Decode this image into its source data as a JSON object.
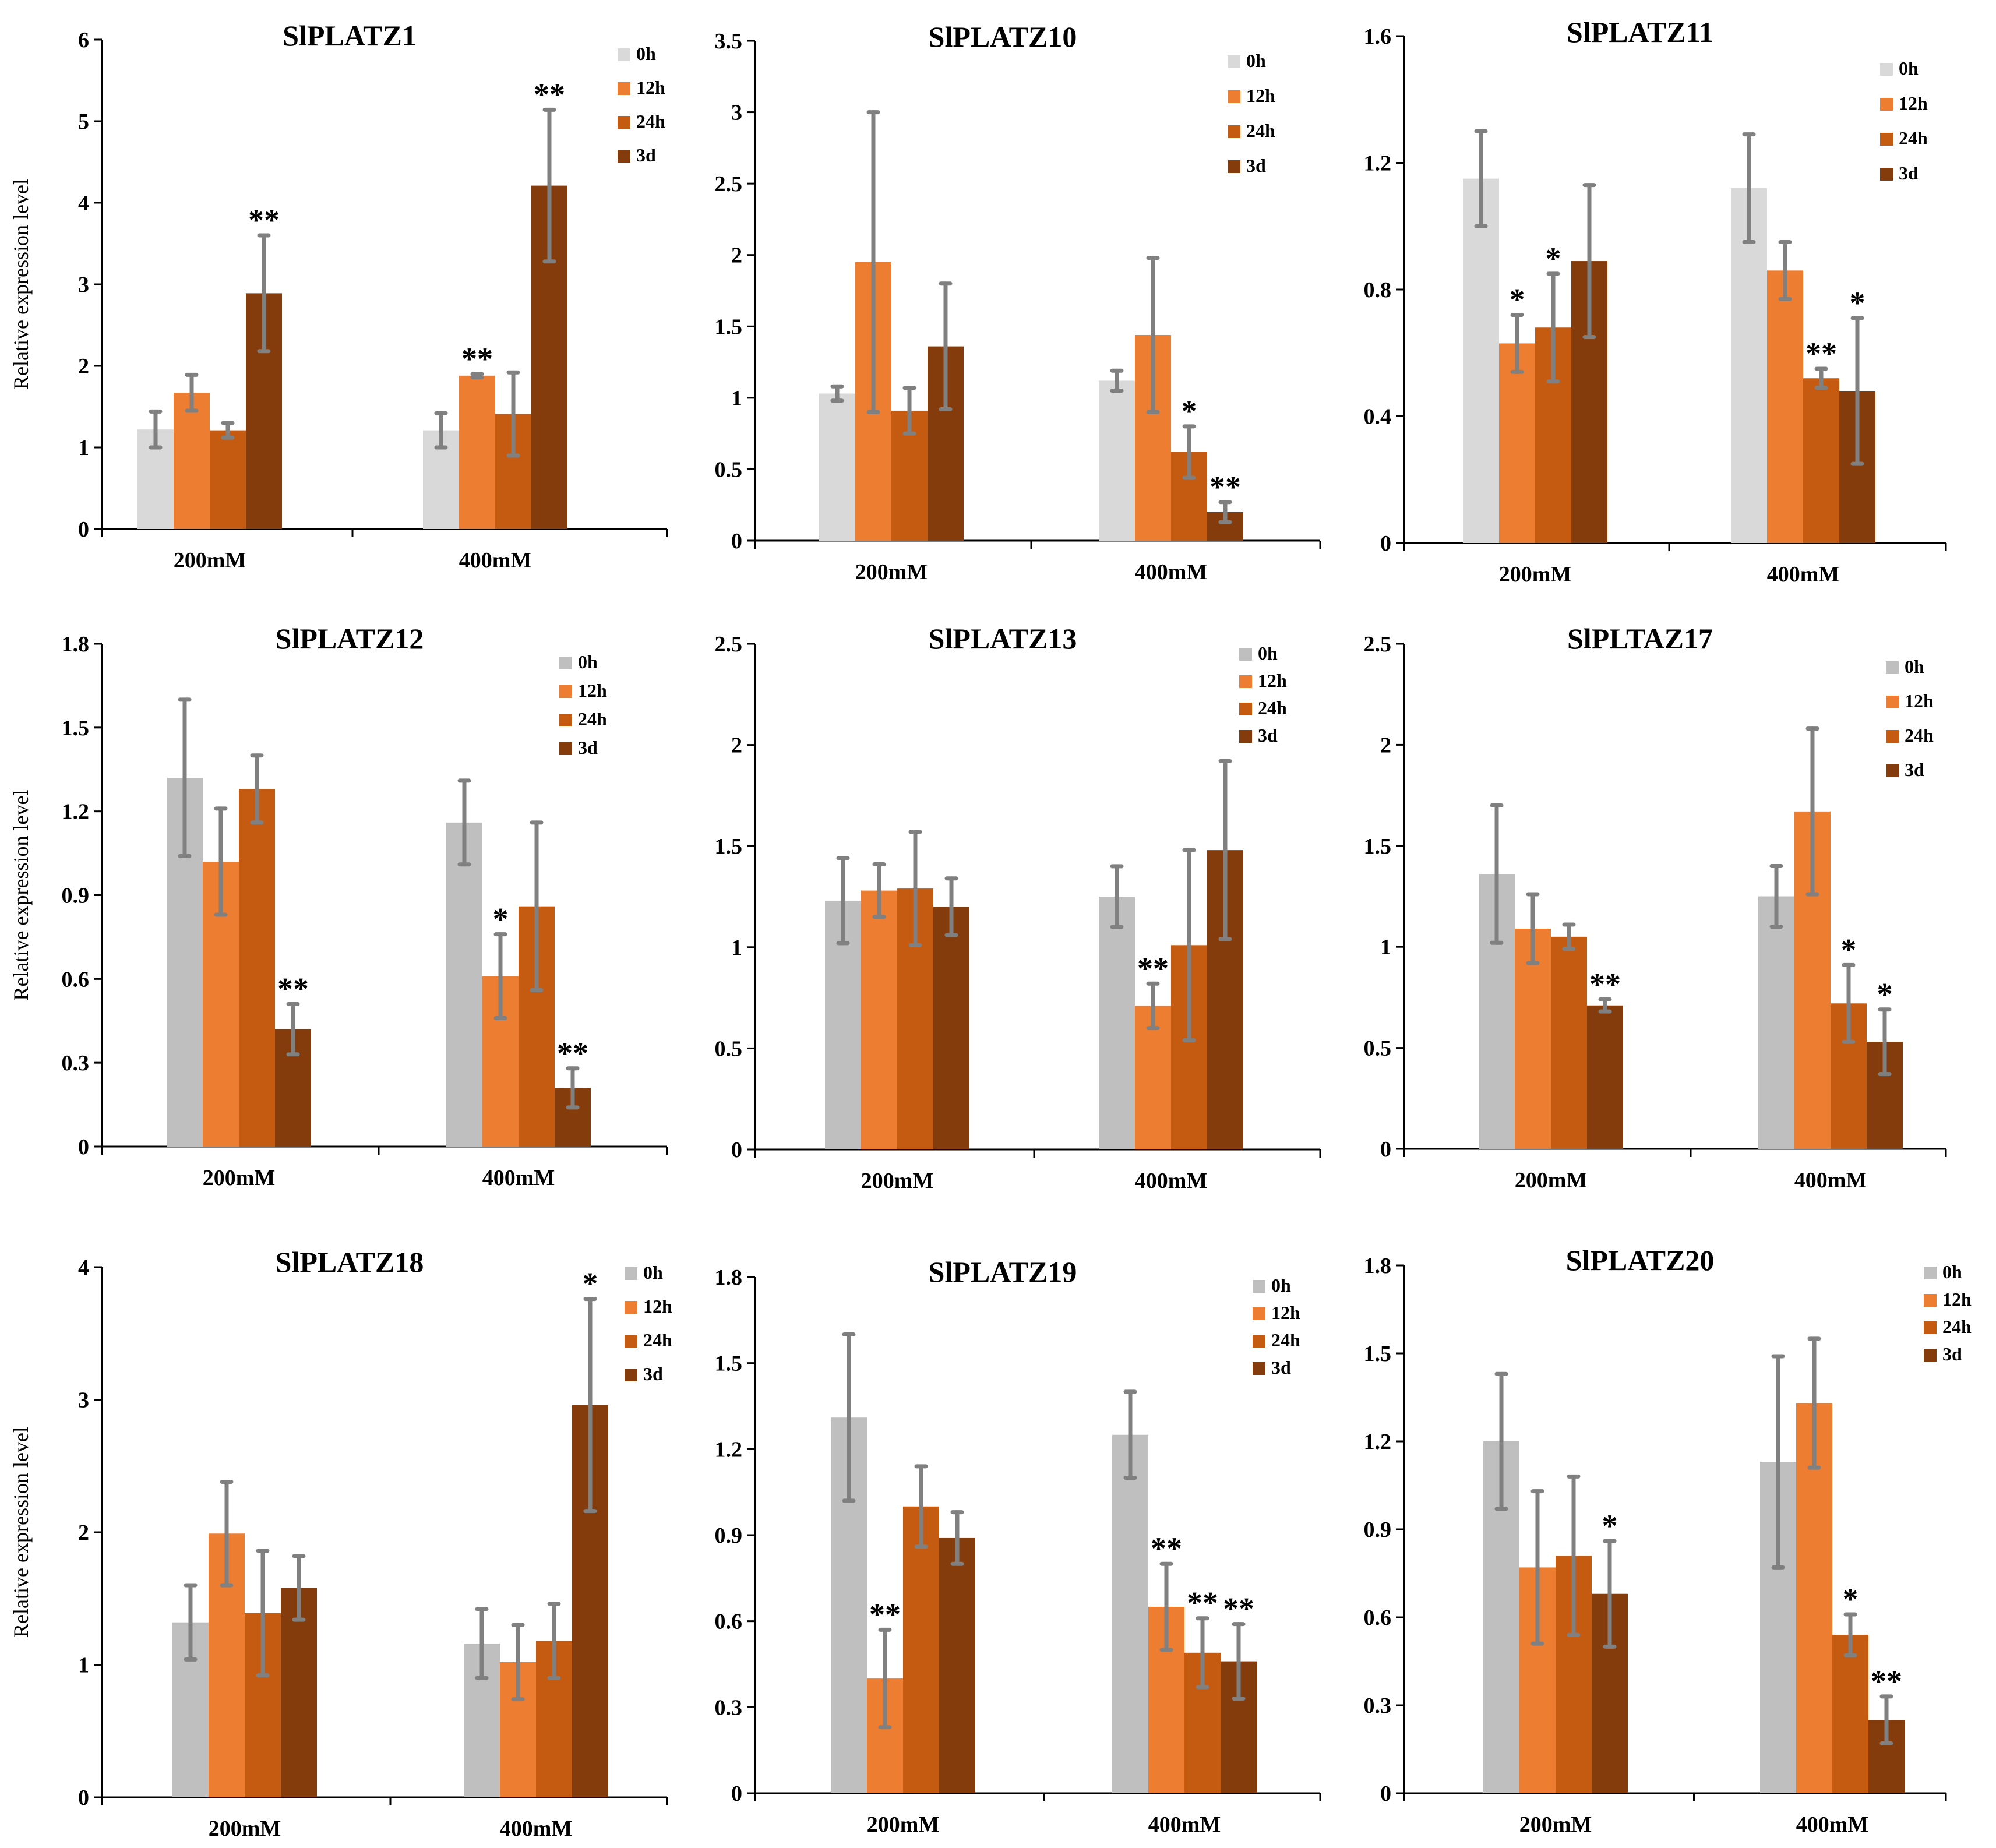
{
  "chart_data": [
    {
      "type": "bar",
      "title": "SlPLATZ1",
      "ylabel": "Relative expression level",
      "categories": [
        "200mM",
        "400mM"
      ],
      "ylim": [
        0,
        6
      ],
      "yticks": [
        0,
        1,
        2,
        3,
        4,
        5,
        6
      ],
      "yticklabels": [
        "0",
        "1",
        "2",
        "3",
        "4",
        "5",
        "6"
      ],
      "series": [
        {
          "name": "0h",
          "values": [
            1.22,
            1.21
          ],
          "errors": [
            0.22,
            0.21
          ],
          "sig": [
            "",
            ""
          ]
        },
        {
          "name": "12h",
          "values": [
            1.67,
            1.88
          ],
          "errors": [
            0.22,
            0.02
          ],
          "sig": [
            "",
            "**"
          ]
        },
        {
          "name": "24h",
          "values": [
            1.21,
            1.41
          ],
          "errors": [
            0.09,
            0.51
          ],
          "sig": [
            "",
            ""
          ]
        },
        {
          "name": "3d",
          "values": [
            2.89,
            4.21
          ],
          "errors": [
            0.71,
            0.93
          ],
          "sig": [
            "**",
            "**"
          ]
        }
      ]
    },
    {
      "type": "bar",
      "title": "SlPLATZ10",
      "ylabel": "",
      "categories": [
        "200mM",
        "400mM"
      ],
      "ylim": [
        0,
        3.5
      ],
      "yticks": [
        0,
        0.5,
        1,
        1.5,
        2,
        2.5,
        3,
        3.5
      ],
      "yticklabels": [
        "0",
        "0.5",
        "1",
        "1.5",
        "2",
        "2.5",
        "3",
        "3.5"
      ],
      "series": [
        {
          "name": "0h",
          "values": [
            1.03,
            1.12
          ],
          "errors": [
            0.05,
            0.07
          ],
          "sig": [
            "",
            ""
          ]
        },
        {
          "name": "12h",
          "values": [
            1.95,
            1.44
          ],
          "errors": [
            1.05,
            0.54
          ],
          "sig": [
            "",
            ""
          ]
        },
        {
          "name": "24h",
          "values": [
            0.91,
            0.62
          ],
          "errors": [
            0.16,
            0.18
          ],
          "sig": [
            "",
            "*"
          ]
        },
        {
          "name": "3d",
          "values": [
            1.36,
            0.2
          ],
          "errors": [
            0.44,
            0.07
          ],
          "sig": [
            "",
            "**"
          ]
        }
      ]
    },
    {
      "type": "bar",
      "title": "SlPLATZ11",
      "ylabel": "",
      "categories": [
        "200mM",
        "400mM"
      ],
      "ylim": [
        0,
        1.6
      ],
      "yticks": [
        0,
        0.4,
        0.8,
        1.2,
        1.6
      ],
      "yticklabels": [
        "0",
        "0.4",
        "0.8",
        "1.2",
        "1.6"
      ],
      "series": [
        {
          "name": "0h",
          "values": [
            1.15,
            1.12
          ],
          "errors": [
            0.15,
            0.17
          ],
          "sig": [
            "",
            ""
          ]
        },
        {
          "name": "12h",
          "values": [
            0.63,
            0.86
          ],
          "errors": [
            0.09,
            0.09
          ],
          "sig": [
            "*",
            ""
          ]
        },
        {
          "name": "24h",
          "values": [
            0.68,
            0.52
          ],
          "errors": [
            0.17,
            0.03
          ],
          "sig": [
            "*",
            "**"
          ]
        },
        {
          "name": "3d",
          "values": [
            0.89,
            0.48
          ],
          "errors": [
            0.24,
            0.23
          ],
          "sig": [
            "",
            "*"
          ]
        }
      ]
    },
    {
      "type": "bar",
      "title": "SlPLATZ12",
      "ylabel": "Relative expression level",
      "categories": [
        "200mM",
        "400mM"
      ],
      "ylim": [
        0,
        1.8
      ],
      "yticks": [
        0,
        0.3,
        0.6,
        0.9,
        1.2,
        1.5,
        1.8
      ],
      "yticklabels": [
        "0",
        "0.3",
        "0.6",
        "0.9",
        "1.2",
        "1.5",
        "1.8"
      ],
      "series": [
        {
          "name": "0h",
          "values": [
            1.32,
            1.16
          ],
          "errors": [
            0.28,
            0.15
          ],
          "sig": [
            "",
            ""
          ]
        },
        {
          "name": "12h",
          "values": [
            1.02,
            0.61
          ],
          "errors": [
            0.19,
            0.15
          ],
          "sig": [
            "",
            "*"
          ]
        },
        {
          "name": "24h",
          "values": [
            1.28,
            0.86
          ],
          "errors": [
            0.12,
            0.3
          ],
          "sig": [
            "",
            ""
          ]
        },
        {
          "name": "3d",
          "values": [
            0.42,
            0.21
          ],
          "errors": [
            0.09,
            0.07
          ],
          "sig": [
            "**",
            "**"
          ]
        }
      ]
    },
    {
      "type": "bar",
      "title": "SlPLATZ13",
      "ylabel": "",
      "categories": [
        "200mM",
        "400mM"
      ],
      "ylim": [
        0,
        2.5
      ],
      "yticks": [
        0,
        0.5,
        1,
        1.5,
        2,
        2.5
      ],
      "yticklabels": [
        "0",
        "0.5",
        "1",
        "1.5",
        "2",
        "2.5"
      ],
      "series": [
        {
          "name": "0h",
          "values": [
            1.23,
            1.25
          ],
          "errors": [
            0.21,
            0.15
          ],
          "sig": [
            "",
            ""
          ]
        },
        {
          "name": "12h",
          "values": [
            1.28,
            0.71
          ],
          "errors": [
            0.13,
            0.11
          ],
          "sig": [
            "",
            "**"
          ]
        },
        {
          "name": "24h",
          "values": [
            1.29,
            1.01
          ],
          "errors": [
            0.28,
            0.47
          ],
          "sig": [
            "",
            ""
          ]
        },
        {
          "name": "3d",
          "values": [
            1.2,
            1.48
          ],
          "errors": [
            0.14,
            0.44
          ],
          "sig": [
            "",
            ""
          ]
        }
      ]
    },
    {
      "type": "bar",
      "title": "SlPLTAZ17",
      "ylabel": "",
      "categories": [
        "200mM",
        "400mM"
      ],
      "ylim": [
        0,
        2.5
      ],
      "yticks": [
        0,
        0.5,
        1,
        1.5,
        2,
        2.5
      ],
      "yticklabels": [
        "0",
        "0.5",
        "1",
        "1.5",
        "2",
        "2.5"
      ],
      "series": [
        {
          "name": "0h",
          "values": [
            1.36,
            1.25
          ],
          "errors": [
            0.34,
            0.15
          ],
          "sig": [
            "",
            ""
          ]
        },
        {
          "name": "12h",
          "values": [
            1.09,
            1.67
          ],
          "errors": [
            0.17,
            0.41
          ],
          "sig": [
            "",
            ""
          ]
        },
        {
          "name": "24h",
          "values": [
            1.05,
            0.72
          ],
          "errors": [
            0.06,
            0.19
          ],
          "sig": [
            "",
            "*"
          ]
        },
        {
          "name": "3d",
          "values": [
            0.71,
            0.53
          ],
          "errors": [
            0.03,
            0.16
          ],
          "sig": [
            "**",
            "*"
          ]
        }
      ]
    },
    {
      "type": "bar",
      "title": "SlPLATZ18",
      "ylabel": "Relative expression level",
      "categories": [
        "200mM",
        "400mM"
      ],
      "ylim": [
        0,
        4
      ],
      "yticks": [
        0,
        1,
        2,
        3,
        4
      ],
      "yticklabels": [
        "0",
        "1",
        "2",
        "3",
        "4"
      ],
      "series": [
        {
          "name": "0h",
          "values": [
            1.32,
            1.16
          ],
          "errors": [
            0.28,
            0.26
          ],
          "sig": [
            "",
            ""
          ]
        },
        {
          "name": "12h",
          "values": [
            1.99,
            1.02
          ],
          "errors": [
            0.39,
            0.28
          ],
          "sig": [
            "",
            ""
          ]
        },
        {
          "name": "24h",
          "values": [
            1.39,
            1.18
          ],
          "errors": [
            0.47,
            0.28
          ],
          "sig": [
            "",
            ""
          ]
        },
        {
          "name": "3d",
          "values": [
            1.58,
            2.96
          ],
          "errors": [
            0.24,
            0.8
          ],
          "sig": [
            "",
            "*"
          ]
        }
      ]
    },
    {
      "type": "bar",
      "title": "SlPLATZ19",
      "ylabel": "",
      "categories": [
        "200mM",
        "400mM"
      ],
      "ylim": [
        0,
        1.8
      ],
      "yticks": [
        0,
        0.3,
        0.6,
        0.9,
        1.2,
        1.5,
        1.8
      ],
      "yticklabels": [
        "0",
        "0.3",
        "0.6",
        "0.9",
        "1.2",
        "1.5",
        "1.8"
      ],
      "series": [
        {
          "name": "0h",
          "values": [
            1.31,
            1.25
          ],
          "errors": [
            0.29,
            0.15
          ],
          "sig": [
            "",
            ""
          ]
        },
        {
          "name": "12h",
          "values": [
            0.4,
            0.65
          ],
          "errors": [
            0.17,
            0.15
          ],
          "sig": [
            "**",
            "**"
          ]
        },
        {
          "name": "24h",
          "values": [
            1.0,
            0.49
          ],
          "errors": [
            0.14,
            0.12
          ],
          "sig": [
            "",
            "**"
          ]
        },
        {
          "name": "3d",
          "values": [
            0.89,
            0.46
          ],
          "errors": [
            0.09,
            0.13
          ],
          "sig": [
            "",
            "**"
          ]
        }
      ]
    },
    {
      "type": "bar",
      "title": "SlPLATZ20",
      "ylabel": "",
      "categories": [
        "200mM",
        "400mM"
      ],
      "ylim": [
        0,
        1.8
      ],
      "yticks": [
        0,
        0.3,
        0.6,
        0.9,
        1.2,
        1.5,
        1.8
      ],
      "yticklabels": [
        "0",
        "0.3",
        "0.6",
        "0.9",
        "1.2",
        "1.5",
        "1.8"
      ],
      "series": [
        {
          "name": "0h",
          "values": [
            1.2,
            1.13
          ],
          "errors": [
            0.23,
            0.36
          ],
          "sig": [
            "",
            ""
          ]
        },
        {
          "name": "12h",
          "values": [
            0.77,
            1.33
          ],
          "errors": [
            0.26,
            0.22
          ],
          "sig": [
            "",
            ""
          ]
        },
        {
          "name": "24h",
          "values": [
            0.81,
            0.54
          ],
          "errors": [
            0.27,
            0.07
          ],
          "sig": [
            "",
            "*"
          ]
        },
        {
          "name": "3d",
          "values": [
            0.68,
            0.25
          ],
          "errors": [
            0.18,
            0.08
          ],
          "sig": [
            "*",
            "**"
          ]
        }
      ]
    }
  ],
  "colors": {
    "0h": "#bfbfbf",
    "12h": "#ed7d31",
    "24h": "#c55a11",
    "3d": "#843c0c",
    "0h_light": "#d9d9d9",
    "error_bar": "#808080"
  }
}
